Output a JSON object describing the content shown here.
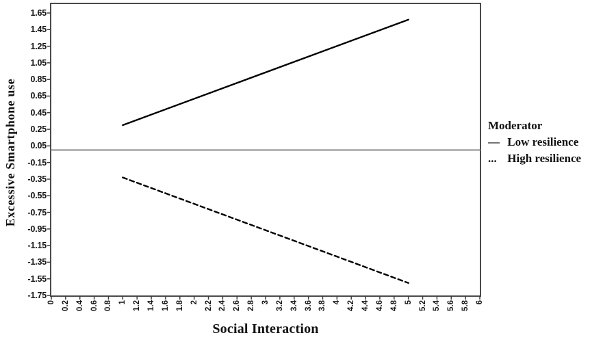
{
  "figure": {
    "background": "#ffffff"
  },
  "chart_data": {
    "type": "line",
    "title": "",
    "xlabel": "Social Interaction",
    "ylabel": "Excessive Smartphone use",
    "xlim": [
      0,
      6
    ],
    "ylim": [
      -1.76,
      1.77
    ],
    "grid": false,
    "x_tick_labels": [
      "0",
      "0.2",
      "0.4",
      "0.6",
      "0.8",
      "1",
      "1.2",
      "1.4",
      "1.6",
      "1.8",
      "2",
      "2.2",
      "2.4",
      "2.6",
      "2.8",
      "3",
      "3.2",
      "3.4",
      "3.6",
      "3.8",
      "4",
      "4.2",
      "4.4",
      "4.6",
      "4.8",
      "5",
      "5.2",
      "5.4",
      "5.6",
      "5.8",
      "6"
    ],
    "y_tick_labels": [
      "1.65",
      "1.45",
      "1.25",
      "1.05",
      "0.85",
      "0.65",
      "0.45",
      "0.25",
      "0.05",
      "-0.15",
      "-0.35",
      "-0.55",
      "-0.75",
      "-0.95",
      "-1.15",
      "-1.35",
      "-1.55",
      "-1.75"
    ],
    "reference_line_y": 0,
    "series": [
      {
        "name": "Low resilience",
        "line_style": "solid",
        "color": "#000000",
        "x": [
          1,
          5
        ],
        "y": [
          0.3,
          1.57
        ]
      },
      {
        "name": "High resilience",
        "line_style": "dashed",
        "color": "#000000",
        "x": [
          1,
          5
        ],
        "y": [
          -0.33,
          -1.6
        ]
      }
    ],
    "legend": {
      "title": "Moderator",
      "position": "right",
      "entries": [
        {
          "symbol": "—",
          "label": "Low resilience"
        },
        {
          "symbol": "...",
          "label": "High resilience"
        }
      ]
    },
    "colors": {
      "axis": "#4a4a4a",
      "tick": "#3a3a3a",
      "text": "#111111",
      "reference_line": "#8c8c8c"
    }
  }
}
